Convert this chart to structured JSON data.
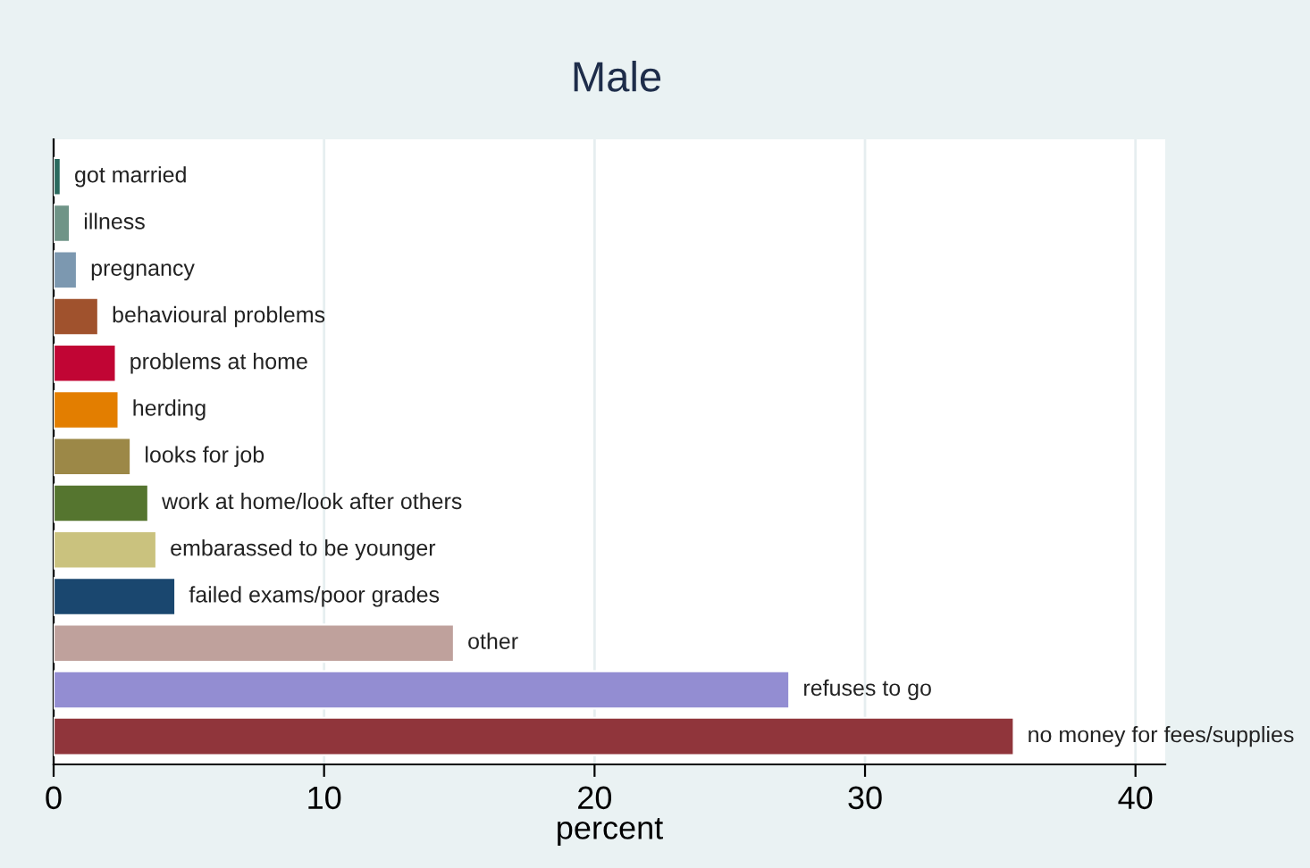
{
  "chart_data": {
    "type": "bar",
    "orientation": "horizontal",
    "title": "Male",
    "xlabel": "percent",
    "categories": [
      "got married",
      "illness",
      "pregnancy",
      "behavioural problems",
      "problems at home",
      "herding",
      "looks for job",
      "work at home/look after others",
      "embarassed to be younger",
      "failed exams/poor grades",
      "other",
      "refuses to go",
      "no money for fees/supplies"
    ],
    "values": [
      0.26,
      0.6,
      0.86,
      1.65,
      2.3,
      2.4,
      2.85,
      3.5,
      3.8,
      4.5,
      14.8,
      27.2,
      35.5
    ],
    "colors": [
      "#2a6a5e",
      "#6f9487",
      "#7c98b0",
      "#a0522d",
      "#c10534",
      "#e37e00",
      "#9c8847",
      "#55752f",
      "#cac27e",
      "#1a476f",
      "#bfa19c",
      "#938dd2",
      "#90353b"
    ],
    "xlim": [
      0,
      41.1
    ],
    "xticks": [
      0,
      10,
      20,
      30,
      40
    ],
    "grid": "x"
  }
}
